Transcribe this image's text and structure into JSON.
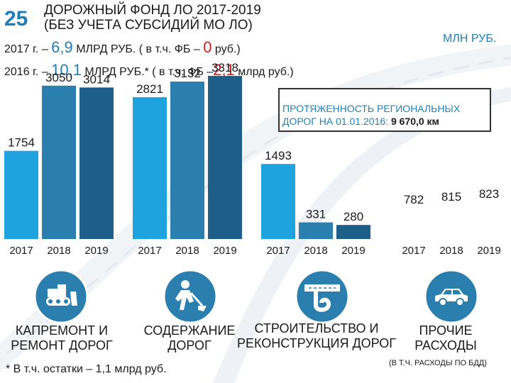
{
  "header": {
    "slide_number": "25",
    "title_line1": "ДОРОЖНЫЙ ФОНД ЛО 2017-2019",
    "title_line2": "(БЕЗ УЧЕТА СУБСИДИЙ МО ЛО)",
    "units": "МЛН РУБ."
  },
  "info": {
    "line2017": {
      "prefix": "2017 г. – ",
      "amount": "6,9",
      "mid": " МЛРД РУБ. ( в т.ч. ФБ – ",
      "fb": "0",
      "suffix": " руб.)"
    },
    "line2016": {
      "prefix": "2016 г. – ",
      "amount": "10,1",
      "mid": " МЛРД РУБ.* ( в т.ч. ФБ –",
      "fb": "2,1",
      "suffix": " млрд руб.)"
    }
  },
  "callout": {
    "text": "ПРОТЯЖЕННОСТЬ РЕГИОНАЛЬНЫХ ДОРОГ НА 01.01.2016:",
    "line1": "ПРОТЯЖЕННОСТЬ РЕГИОНАЛЬНЫХ",
    "line2": "ДОРОГ НА 01.01.2016:",
    "value": "9 670,0 км"
  },
  "sectors": [
    {
      "line1": "КАПРЕМОНТ И",
      "line2": "РЕМОНТ ДОРОГ",
      "icon": "bulldozer-icon"
    },
    {
      "line1": "СОДЕРЖАНИЕ",
      "line2": "ДОРОГ",
      "icon": "road-worker-icon"
    },
    {
      "line1": "СТРОИТЕЛЬСТВО И",
      "line2": "РЕКОНСТРУКЦИЯ ДОРОГ",
      "icon": "road-interchange-icon"
    },
    {
      "line1": "ПРОЧИЕ",
      "line2": "РАСХОДЫ",
      "icon": "car-icon"
    }
  ],
  "footnote": "* В т.ч. остатки – 1,1 млрд руб.",
  "other_note": "(В Т.Ч. РАСХОДЫ ПО БДД)",
  "colors": {
    "bar_light": "#1ea3df",
    "bar_mid": "#2a7fae",
    "bar_dark": "#1e5f8a",
    "accent": "#1f7fb6",
    "icon_bg": "#2a7fae",
    "red": "#d11f1f"
  },
  "chart_data": [
    {
      "type": "bar",
      "title": "КАПРЕМОНТ И РЕМОНТ ДОРОГ",
      "categories": [
        "2017",
        "2018",
        "2019"
      ],
      "values": [
        1754,
        3050,
        3014
      ],
      "ylabel": "млн руб.",
      "ylim": [
        0,
        3318
      ]
    },
    {
      "type": "bar",
      "title": "СОДЕРЖАНИЕ ДОРОГ",
      "categories": [
        "2017",
        "2018",
        "2019"
      ],
      "values": [
        2821,
        3132,
        3318
      ],
      "ylabel": "млн руб.",
      "ylim": [
        0,
        3318
      ]
    },
    {
      "type": "bar",
      "title": "СТРОИТЕЛЬСТВО И РЕКОНСТРУКЦИЯ ДОРОГ",
      "categories": [
        "2017",
        "2018",
        "2019"
      ],
      "values": [
        1493,
        331,
        280
      ],
      "ylabel": "млн руб.",
      "ylim": [
        0,
        3318
      ]
    },
    {
      "type": "bar",
      "title": "ПРОЧИЕ РАСХОДЫ",
      "categories": [
        "2017",
        "2018",
        "2019"
      ],
      "values": [
        782,
        815,
        823
      ],
      "ylabel": "млн руб.",
      "ylim": [
        0,
        3318
      ]
    }
  ]
}
